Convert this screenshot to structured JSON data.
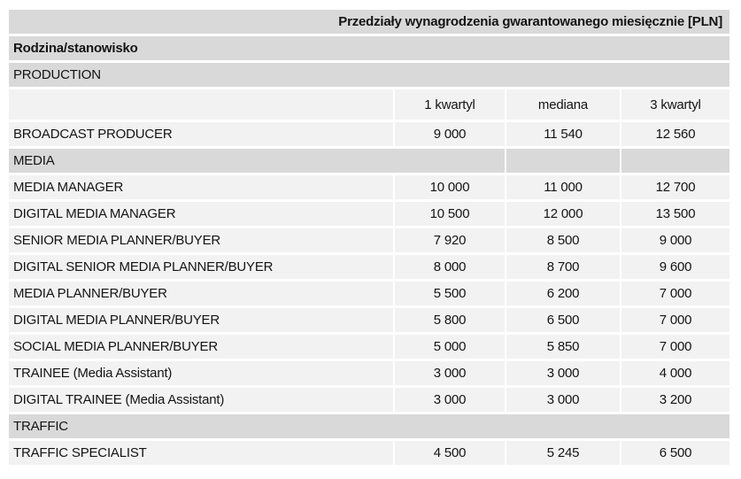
{
  "title": "Przedziały wynagrodzenia gwarantowanego miesięcznie [PLN]",
  "family_header": "Rodzina/stanowisko",
  "columns": {
    "q1": "1 kwartyl",
    "median": "mediana",
    "q3": "3 kwartyl"
  },
  "sections": {
    "production": {
      "label": "PRODUCTION",
      "rows": [
        {
          "name": "BROADCAST PRODUCER",
          "q1": "9 000",
          "median": "11 540",
          "q3": "12 560"
        }
      ]
    },
    "media": {
      "label": "MEDIA",
      "rows": [
        {
          "name": "MEDIA MANAGER",
          "q1": "10 000",
          "median": "11 000",
          "q3": "12 700"
        },
        {
          "name": "DIGITAL MEDIA MANAGER",
          "q1": "10 500",
          "median": "12 000",
          "q3": "13 500"
        },
        {
          "name": "SENIOR MEDIA PLANNER/BUYER",
          "q1": "7 920",
          "median": "8 500",
          "q3": "9 000"
        },
        {
          "name": "DIGITAL SENIOR MEDIA PLANNER/BUYER",
          "q1": "8 000",
          "median": "8 700",
          "q3": "9 600"
        },
        {
          "name": "MEDIA PLANNER/BUYER",
          "q1": "5 500",
          "median": "6 200",
          "q3": "7 000"
        },
        {
          "name": "DIGITAL MEDIA PLANNER/BUYER",
          "q1": "5 800",
          "median": "6 500",
          "q3": "7 000"
        },
        {
          "name": "SOCIAL MEDIA PLANNER/BUYER",
          "q1": "5 000",
          "median": "5 850",
          "q3": "7 000"
        },
        {
          "name": "TRAINEE (Media Assistant)",
          "q1": "3 000",
          "median": "3 000",
          "q3": "4 000"
        },
        {
          "name": "DIGITAL TRAINEE (Media Assistant)",
          "q1": "3 000",
          "median": "3 000",
          "q3": "3 200"
        }
      ]
    },
    "traffic": {
      "label": "TRAFFIC",
      "rows": [
        {
          "name": "TRAFFIC SPECIALIST",
          "q1": "4 500",
          "median": "5 245",
          "q3": "6 500"
        }
      ]
    }
  },
  "colors": {
    "band_bg": "#d9d9d9",
    "row_bg": "#f2f2f2",
    "text": "#141414"
  }
}
